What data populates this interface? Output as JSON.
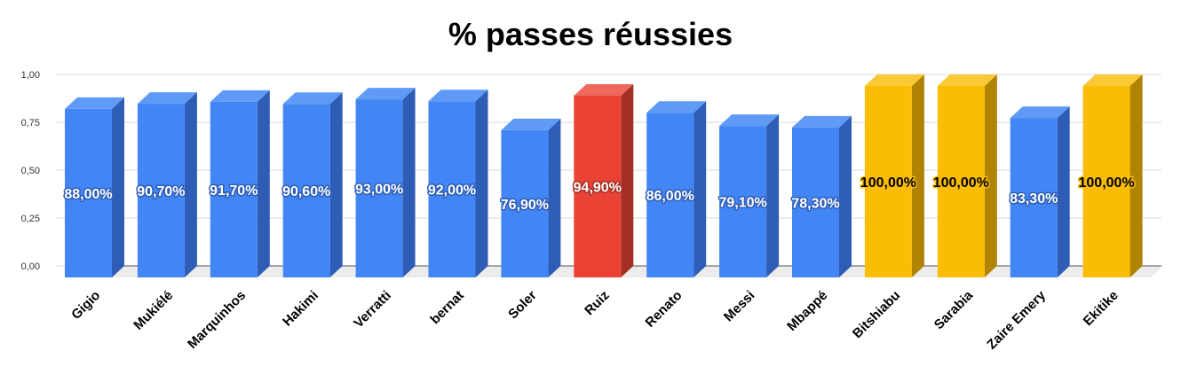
{
  "chart_data": {
    "type": "bar",
    "title": "% passes réussies",
    "xlabel": "",
    "ylabel": "",
    "ylim": [
      0,
      1
    ],
    "y_ticks": [
      "0,00",
      "0,25",
      "0,50",
      "0,75",
      "1,00"
    ],
    "y_tick_values": [
      0,
      0.25,
      0.5,
      0.75,
      1.0
    ],
    "grid": true,
    "style": "3d",
    "categories": [
      "Gigio",
      "Mukiélé",
      "Marquinhos",
      "Hakimi",
      "Verratti",
      "bernat",
      "Soler",
      "Ruiz",
      "Renato",
      "Messi",
      "Mbappé",
      "Bitshiabu",
      "Sarabia",
      "Zaire Emery",
      "Ekitike"
    ],
    "values": [
      0.88,
      0.907,
      0.917,
      0.906,
      0.93,
      0.92,
      0.769,
      0.949,
      0.86,
      0.791,
      0.783,
      1.0,
      1.0,
      0.833,
      1.0
    ],
    "labels": [
      "88,00%",
      "90,70%",
      "91,70%",
      "90,60%",
      "93,00%",
      "92,00%",
      "76,90%",
      "94,90%",
      "86,00%",
      "79,10%",
      "78,30%",
      "100,00%",
      "100,00%",
      "83,30%",
      "100,00%"
    ],
    "bar_groups": [
      "blue",
      "blue",
      "blue",
      "blue",
      "blue",
      "blue",
      "blue",
      "red",
      "blue",
      "blue",
      "blue",
      "yellow",
      "yellow",
      "blue",
      "yellow"
    ],
    "colors": {
      "blue": {
        "front": "#4285f4",
        "side": "#2e5db5",
        "top": "#5f9af6",
        "label": "#ffffff",
        "halo": "#2e5db5"
      },
      "red": {
        "front": "#ea4335",
        "side": "#a42f25",
        "top": "#ee685d",
        "label": "#ffffff",
        "halo": "#a42f25"
      },
      "yellow": {
        "front": "#fbbc04",
        "side": "#b08303",
        "top": "#fcc936",
        "label": "#000000",
        "halo": "#fbbc04"
      }
    }
  }
}
